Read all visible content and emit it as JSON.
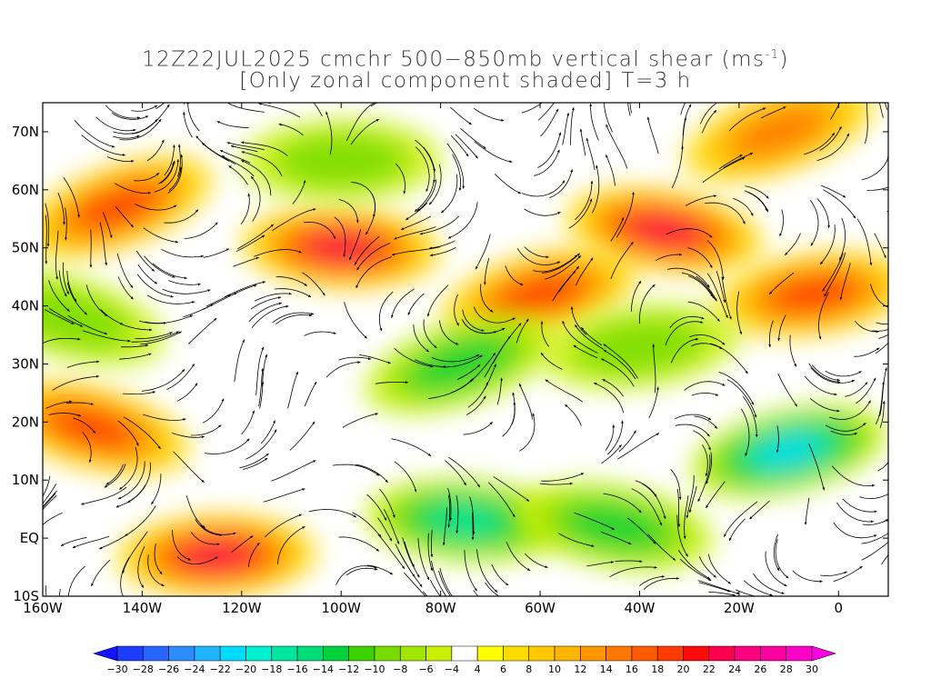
{
  "title": {
    "line1_prefix": "12Z22JUL2025 cmchr 500−850mb vertical shear (ms",
    "line1_sup": "-1",
    "line1_suffix": ")",
    "line2": "[Only zonal component shaded] T=3 h"
  },
  "map": {
    "lon_range": [
      -160,
      10
    ],
    "lat_range": [
      -10,
      75
    ],
    "lat_ticks": [
      {
        "value": 70,
        "label": "70N"
      },
      {
        "value": 60,
        "label": "60N"
      },
      {
        "value": 50,
        "label": "50N"
      },
      {
        "value": 40,
        "label": "40N"
      },
      {
        "value": 30,
        "label": "30N"
      },
      {
        "value": 20,
        "label": "20N"
      },
      {
        "value": 10,
        "label": "10N"
      },
      {
        "value": 0,
        "label": "EQ"
      },
      {
        "value": -10,
        "label": "10S"
      }
    ],
    "lon_ticks": [
      {
        "value": -160,
        "label": "160W"
      },
      {
        "value": -140,
        "label": "140W"
      },
      {
        "value": -120,
        "label": "120W"
      },
      {
        "value": -100,
        "label": "100W"
      },
      {
        "value": -80,
        "label": "80W"
      },
      {
        "value": -60,
        "label": "60W"
      },
      {
        "value": -40,
        "label": "40W"
      },
      {
        "value": -20,
        "label": "20W"
      },
      {
        "value": 0,
        "label": "0"
      }
    ],
    "shear_features": [
      {
        "lon": -145,
        "lat": 57,
        "u": 20
      },
      {
        "lon": -100,
        "lat": 50,
        "u": 24
      },
      {
        "lon": -60,
        "lat": 42,
        "u": 20
      },
      {
        "lon": -35,
        "lat": 53,
        "u": 22
      },
      {
        "lon": -5,
        "lat": 42,
        "u": 20
      },
      {
        "lon": -150,
        "lat": 19,
        "u": 20
      },
      {
        "lon": -125,
        "lat": -3,
        "u": 22
      },
      {
        "lon": -12,
        "lat": 70,
        "u": 16
      },
      {
        "lon": -75,
        "lat": 3,
        "u": -20
      },
      {
        "lon": -10,
        "lat": 15,
        "u": -24
      },
      {
        "lon": -45,
        "lat": 2,
        "u": -14
      },
      {
        "lon": -40,
        "lat": 33,
        "u": -12
      },
      {
        "lon": -155,
        "lat": 38,
        "u": -10
      },
      {
        "lon": -100,
        "lat": 65,
        "u": -12
      },
      {
        "lon": -76,
        "lat": 30,
        "u": -16
      }
    ]
  },
  "colorbar": {
    "labels": [
      "-30",
      "-28",
      "-26",
      "-24",
      "-22",
      "-20",
      "-18",
      "-16",
      "-14",
      "-12",
      "-10",
      "-8",
      "-6",
      "-4",
      "4",
      "6",
      "8",
      "10",
      "12",
      "14",
      "16",
      "18",
      "20",
      "22",
      "24",
      "26",
      "28",
      "30"
    ],
    "colors": [
      "#1414ff",
      "#1e3cff",
      "#2864ff",
      "#2d8cff",
      "#1eb4ff",
      "#00dcff",
      "#00f0d2",
      "#00e6a0",
      "#00dc78",
      "#00d23c",
      "#3cd200",
      "#78dc00",
      "#a0e600",
      "#c8f000",
      "#ffffff",
      "#ffff00",
      "#ffdc00",
      "#ffc800",
      "#ffb400",
      "#ff9600",
      "#ff7800",
      "#ff5a00",
      "#ff3c00",
      "#ff0a0a",
      "#ff0050",
      "#ff0080",
      "#ff00a0",
      "#ff00c8",
      "#ff00e6"
    ]
  }
}
